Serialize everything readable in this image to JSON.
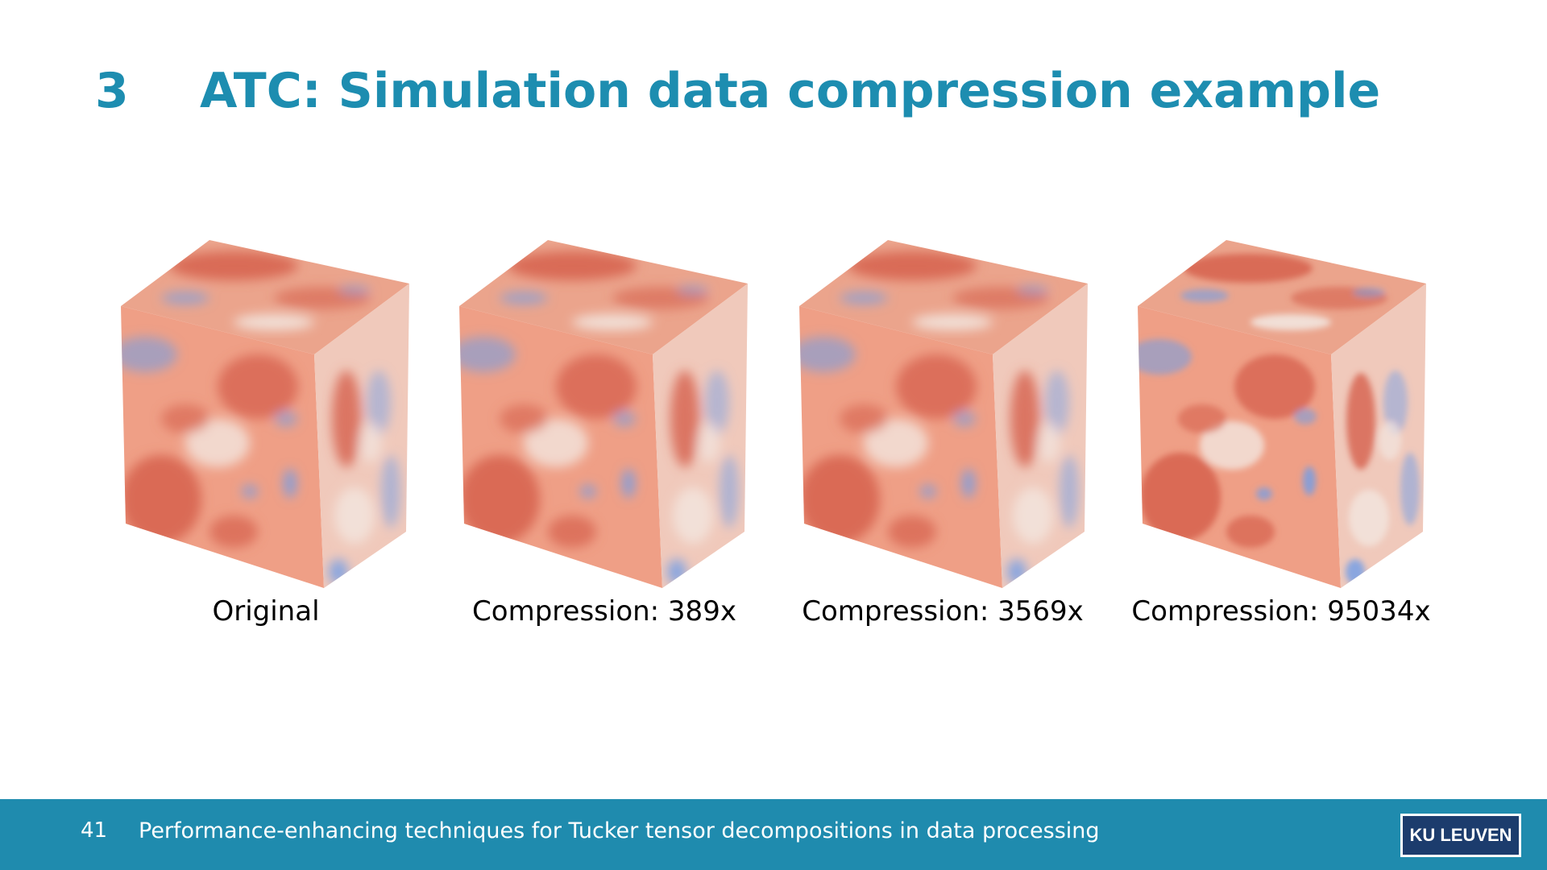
{
  "slide": {
    "section_number": "3",
    "title": "ATC: Simulation data compression example"
  },
  "figures": [
    {
      "caption": "Original"
    },
    {
      "caption": "Compression: 389x"
    },
    {
      "caption": "Compression: 3569x"
    },
    {
      "caption": "Compression: 95034x"
    }
  ],
  "colors": {
    "accent": "#1d8db0",
    "footer_bg": "#1f8bae",
    "logo_bg": "#1c3c6d",
    "field_red": "#d6604d",
    "field_light": "#f2e6df",
    "field_blue": "#6f9ee8"
  },
  "footer": {
    "page_number": "41",
    "talk_title": "Performance-enhancing techniques for Tucker tensor decompositions in data processing",
    "logo_text": "KU LEUVEN"
  }
}
